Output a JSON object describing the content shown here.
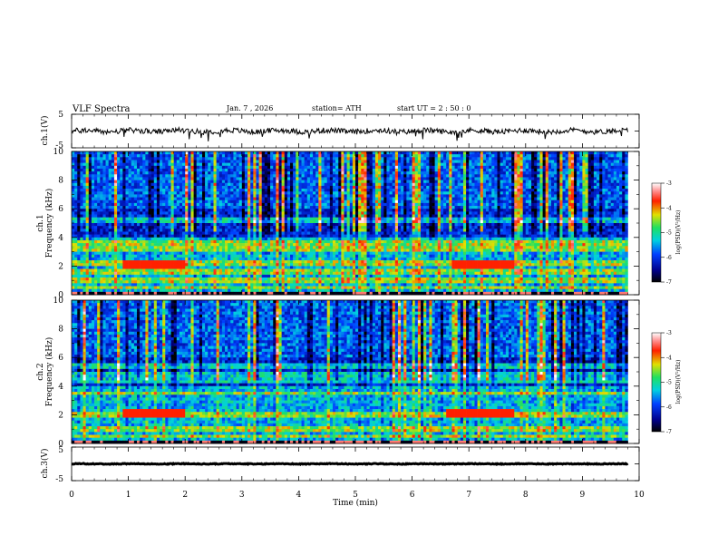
{
  "header": {
    "title": "VLF  Spectra",
    "date": "Jan.  7  , 2026",
    "station": "station= ATH",
    "start_ut": "start  UT  =   2  : 50 : 0"
  },
  "chart_data": [
    {
      "type": "line",
      "name": "ch1-waveform",
      "ylabel": "ch.1(V)",
      "ytick_labels": [
        "5",
        "-5"
      ],
      "ylim": [
        -5,
        5
      ],
      "xlim": [
        0,
        10
      ],
      "baseline": 0,
      "noise_amplitude": 0.8,
      "data_end_min": 9.8
    },
    {
      "type": "heatmap",
      "name": "ch1-spectrogram",
      "ylabel": "ch.1\nFrequency  (kHz)",
      "ytick_labels": [
        "0",
        "2",
        "4",
        "6",
        "8",
        "10"
      ],
      "ylim": [
        0,
        10
      ],
      "xlim": [
        0,
        10
      ],
      "data_end_min": 9.8,
      "colorbar": {
        "label": "log(PSD)(V²/Hz)",
        "tick_labels": [
          "-3",
          "-4",
          "-5",
          "-6",
          "-7"
        ],
        "range": [
          -7,
          -3
        ]
      },
      "bands_khz": [
        0.5,
        1.0,
        1.6,
        2.2,
        3.2,
        3.6,
        5.2
      ],
      "enhanced_intervals_min": [
        [
          0.9,
          2.0
        ],
        [
          6.7,
          7.8
        ]
      ]
    },
    {
      "type": "heatmap",
      "name": "ch2-spectrogram",
      "ylabel": "ch.2\nFrequency  (kHz)",
      "ytick_labels": [
        "0",
        "2",
        "4",
        "6",
        "8",
        "10"
      ],
      "ylim": [
        0,
        10
      ],
      "xlim": [
        0,
        10
      ],
      "data_end_min": 9.8,
      "colorbar": {
        "label": "log(PSD)(V²/Hz)",
        "tick_labels": [
          "-3",
          "-4",
          "-5",
          "-6",
          "-7"
        ],
        "range": [
          -7,
          -3
        ]
      },
      "bands_khz": [
        0.5,
        1.0,
        2.0,
        3.5,
        4.4,
        4.8,
        5.4
      ],
      "enhanced_intervals_min": [
        [
          0.9,
          2.0
        ],
        [
          6.6,
          7.8
        ]
      ]
    },
    {
      "type": "line",
      "name": "ch3-waveform",
      "ylabel": "ch.3(V)",
      "ytick_labels": [
        "5",
        "-5"
      ],
      "ylim": [
        -5,
        5
      ],
      "xlim": [
        0,
        10
      ],
      "baseline": 0,
      "noise_amplitude": 0.12,
      "data_end_min": 9.8
    }
  ],
  "x_axis": {
    "label": "Time  (min)",
    "tick_labels": [
      "0",
      "1",
      "2",
      "3",
      "4",
      "5",
      "6",
      "7",
      "8",
      "9",
      "10"
    ]
  }
}
